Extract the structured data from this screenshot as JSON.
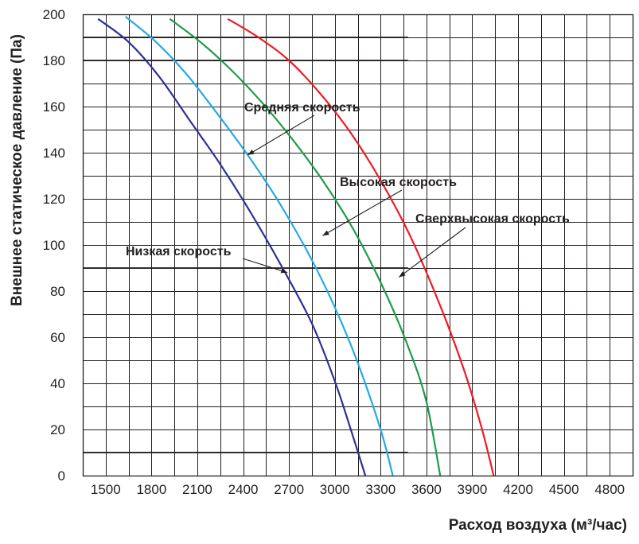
{
  "chart_data": {
    "type": "line",
    "xlabel": "Расход воздуха (м³/час)",
    "ylabel": "Внешнее статическое давление (Па)",
    "xlim": [
      1350,
      4950
    ],
    "ylim": [
      0,
      200
    ],
    "x_ticks": [
      1500,
      1800,
      2100,
      2400,
      2700,
      3000,
      3300,
      3600,
      3900,
      4200,
      4500,
      4800
    ],
    "y_ticks": [
      0,
      20,
      40,
      60,
      80,
      100,
      120,
      140,
      160,
      180,
      200
    ],
    "grid": true,
    "legend": "none",
    "highlight_lines": [
      10,
      90,
      180,
      190
    ],
    "series": [
      {
        "name": "Низкая скорость",
        "color": "#2e3192",
        "x": [
          1450,
          1650,
          1850,
          2050,
          2250,
          2450,
          2650,
          2850,
          3000,
          3100,
          3200
        ],
        "y": [
          198,
          188,
          173,
          154,
          135,
          114,
          91,
          66,
          41,
          21,
          0
        ]
      },
      {
        "name": "Средняя скорость",
        "color": "#27aae1",
        "x": [
          1630,
          1830,
          2030,
          2230,
          2430,
          2630,
          2830,
          3000,
          3150,
          3300,
          3380
        ],
        "y": [
          199,
          188,
          174,
          157,
          139,
          119,
          96,
          73,
          49,
          20,
          0
        ]
      },
      {
        "name": "Высокая скорость",
        "color": "#1e9b4b",
        "x": [
          1920,
          2120,
          2320,
          2520,
          2720,
          2920,
          3120,
          3320,
          3480,
          3600,
          3690
        ],
        "y": [
          198,
          188,
          176,
          162,
          146,
          128,
          107,
          81,
          56,
          32,
          0
        ]
      },
      {
        "name": "Сверхвысокая скорость",
        "color": "#ed1c24",
        "x": [
          2300,
          2500,
          2700,
          2900,
          3100,
          3300,
          3500,
          3700,
          3850,
          3960,
          4040
        ],
        "y": [
          198,
          190,
          180,
          166,
          149,
          128,
          103,
          72,
          45,
          21,
          0
        ]
      }
    ],
    "annotations": [
      {
        "text": "Средняя скорость",
        "series": "Средняя скорость",
        "point": [
          2430,
          139
        ]
      },
      {
        "text": "Высокая скорость",
        "series": "Высокая скорость",
        "point": [
          2920,
          104
        ]
      },
      {
        "text": "Сверхвысокая скорость",
        "series": "Сверхвысокая скорость",
        "point": [
          3420,
          86
        ]
      },
      {
        "text": "Низкая скорость",
        "series": "Низкая скорость",
        "point": [
          2690,
          88
        ]
      }
    ]
  }
}
